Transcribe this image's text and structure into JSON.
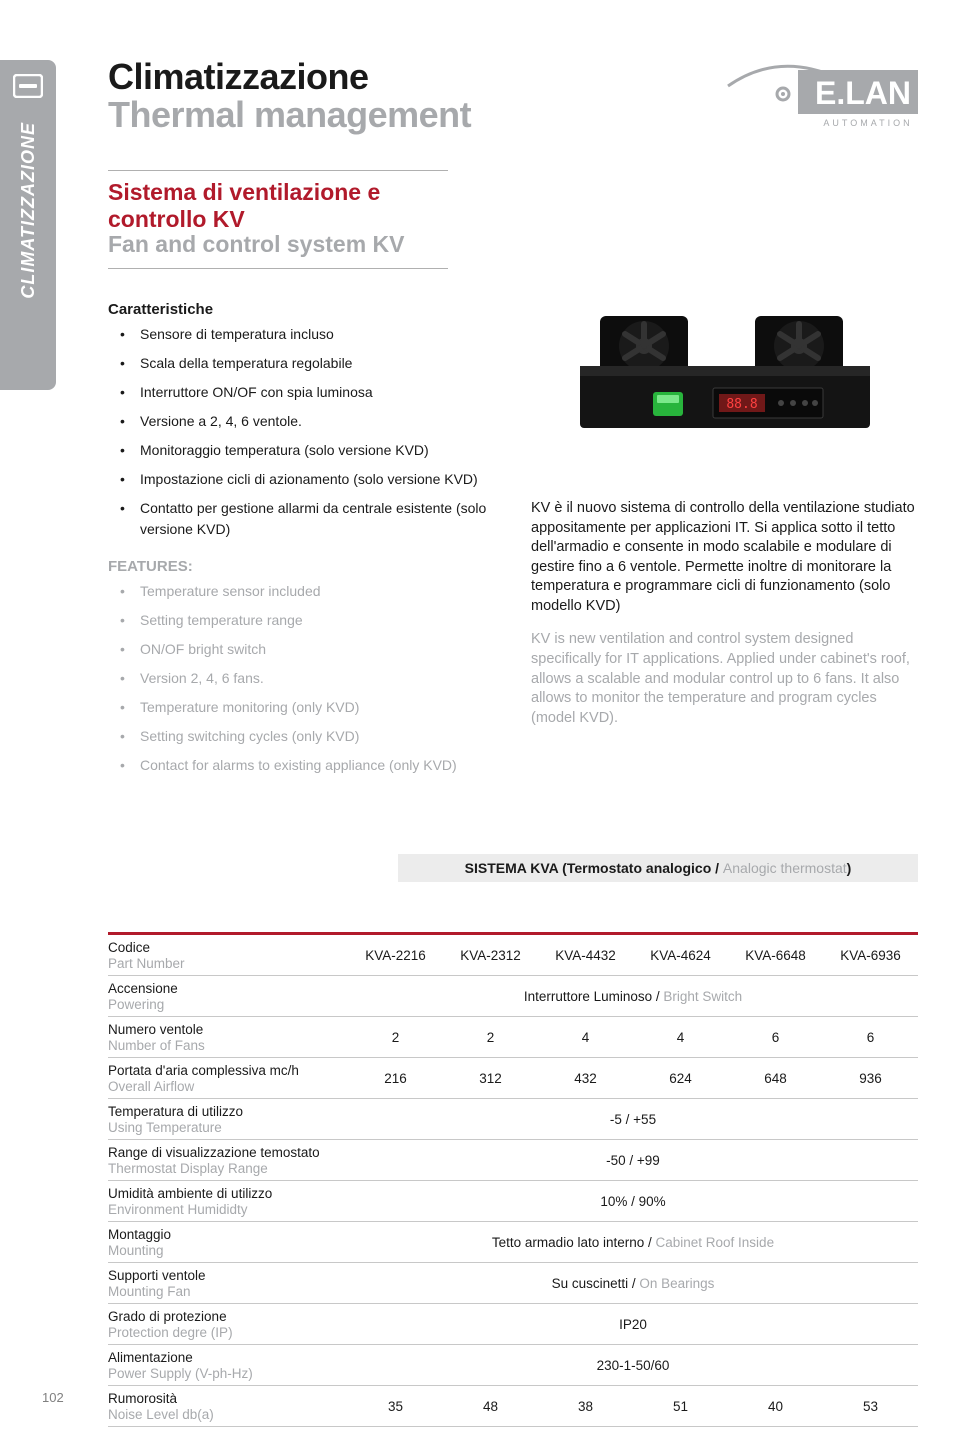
{
  "colors": {
    "accent_red": "#b11a2b",
    "grey_text": "#a7a9ac",
    "grey_bg": "#ececec",
    "border": "#c8c8c8"
  },
  "side_tab": {
    "label": "CLIMATIZZAZIONE"
  },
  "logo": {
    "brand": "E.LAN",
    "sub": "AUTOMATION"
  },
  "title": {
    "it": "Climatizzazione",
    "en": "Thermal management"
  },
  "subhead": {
    "it": "Sistema di ventilazione e controllo KV",
    "en": "Fan and control system KV"
  },
  "features": {
    "heading_it": "Caratteristiche",
    "heading_en": "FEATURES:",
    "items_it": [
      "Sensore di temperatura incluso",
      "Scala della temperatura regolabile",
      "Interruttore ON/OF con spia luminosa",
      "Versione a 2, 4, 6 ventole.",
      "Monitoraggio temperatura (solo versione KVD)",
      "Impostazione cicli di azionamento (solo versione KVD)",
      "Contatto per gestione allarmi da centrale esistente (solo versione KVD)"
    ],
    "items_en": [
      "Temperature sensor included",
      "Setting  temperature range",
      "ON/OF bright switch",
      "Version 2, 4, 6 fans.",
      "Temperature monitoring (only KVD)",
      "Setting switching cycles (only KVD)",
      "Contact for alarms to existing appliance (only KVD)"
    ]
  },
  "description": {
    "it": "KV è il nuovo sistema di controllo della ventilazione studiato appositamente per applicazioni IT. Si applica sotto il tetto dell'armadio e consente in modo scalabile e modulare di gestire fino a 6 ventole. Permette inoltre di monitorare la temperatura e programmare cicli di funzionamento (solo modello KVD)",
    "en": "KV is new ventilation and control system designed specifically for IT applications. Applied under cabinet's roof, allows a scalable and modular control up to 6 fans. It also allows to monitor the temperature and program cycles (model KVD)."
  },
  "table": {
    "title_it": "SISTEMA KVA (Termostato analogico / ",
    "title_en": "Analogic thermostat",
    "title_close": ")",
    "part_numbers": [
      "KVA-2216",
      "KVA-2312",
      "KVA-4432",
      "KVA-4624",
      "KVA-6648",
      "KVA-6936"
    ],
    "rows": [
      {
        "label_it": "Codice",
        "label_en": "Part Number",
        "type": "header"
      },
      {
        "label_it": "Accensione",
        "label_en": "Powering",
        "type": "merged",
        "value_it": "Interruttore Luminoso / ",
        "value_en": "Bright Switch"
      },
      {
        "label_it": "Numero ventole",
        "label_en": "Number of Fans",
        "type": "cells",
        "values": [
          "2",
          "2",
          "4",
          "4",
          "6",
          "6"
        ]
      },
      {
        "label_it": "Portata d'aria complessiva mc/h",
        "label_en": "Overall Airflow",
        "type": "cells",
        "values": [
          "216",
          "312",
          "432",
          "624",
          "648",
          "936"
        ]
      },
      {
        "label_it": "Temperatura di utilizzo",
        "label_en": "Using Temperature",
        "type": "merged",
        "value_it": "-5 / +55",
        "value_en": ""
      },
      {
        "label_it": "Range di visualizzazione temostato",
        "label_en": "Thermostat Display Range",
        "type": "merged",
        "value_it": "-50 / +99",
        "value_en": ""
      },
      {
        "label_it": "Umidità ambiente di utilizzo",
        "label_en": "Environment Humididty",
        "type": "merged",
        "value_it": "10% / 90%",
        "value_en": ""
      },
      {
        "label_it": "Montaggio",
        "label_en": "Mounting",
        "type": "merged",
        "value_it": "Tetto armadio lato interno / ",
        "value_en": "Cabinet Roof Inside"
      },
      {
        "label_it": "Supporti ventole",
        "label_en": "Mounting Fan",
        "type": "merged",
        "value_it": "Su cuscinetti / ",
        "value_en": "On Bearings"
      },
      {
        "label_it": "Grado di protezione",
        "label_en": "Protection degre (IP)",
        "type": "merged",
        "value_it": "IP20",
        "value_en": ""
      },
      {
        "label_it": "Alimentazione",
        "label_en": "Power Supply (V-ph-Hz)",
        "type": "merged",
        "value_it": "230-1-50/60",
        "value_en": ""
      },
      {
        "label_it": "Rumorosità",
        "label_en": "Noise Level db(a)",
        "type": "cells",
        "values": [
          "35",
          "48",
          "38",
          "51",
          "40",
          "53"
        ]
      }
    ]
  },
  "page_number": "102"
}
